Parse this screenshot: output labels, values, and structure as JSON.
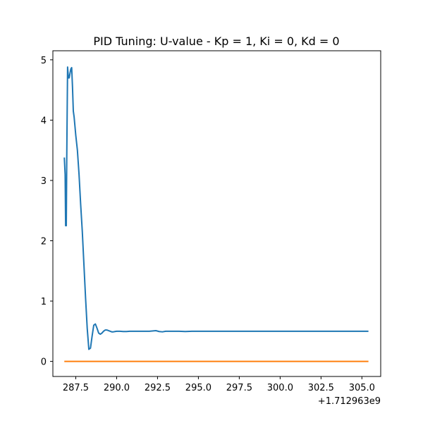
{
  "chart_data": {
    "type": "line",
    "title": "PID Tuning: U-value - Kp = 1, Ki = 0, Kd = 0",
    "xlabel": "",
    "ylabel": "",
    "x_offset_label": "+1.712963e9",
    "xlim": [
      286.1,
      306.15
    ],
    "ylim": [
      -0.25,
      5.15
    ],
    "x_ticks": [
      287.5,
      290.0,
      292.5,
      295.0,
      297.5,
      300.0,
      302.5,
      305.0
    ],
    "x_tick_labels": [
      "287.5",
      "290.0",
      "292.5",
      "295.0",
      "297.5",
      "300.0",
      "302.5",
      "305.0"
    ],
    "y_ticks": [
      0,
      1,
      2,
      3,
      4,
      5
    ],
    "y_tick_labels": [
      "0",
      "1",
      "2",
      "3",
      "4",
      "5"
    ],
    "grid": false,
    "legend": "none",
    "series": [
      {
        "color": "#1f77b4",
        "x": [
          286.8,
          286.85,
          286.88,
          286.92,
          286.95,
          286.98,
          287.0,
          287.05,
          287.1,
          287.15,
          287.2,
          287.25,
          287.3,
          287.35,
          287.4,
          287.45,
          287.5,
          287.6,
          287.7,
          287.8,
          287.9,
          288.0,
          288.1,
          288.2,
          288.3,
          288.4,
          288.5,
          288.6,
          288.7,
          288.8,
          288.9,
          289.0,
          289.1,
          289.2,
          289.3,
          289.4,
          289.5,
          289.6,
          289.7,
          289.8,
          289.9,
          290.0,
          290.2,
          290.4,
          290.6,
          290.8,
          291.0,
          291.5,
          292.0,
          292.4,
          292.6,
          292.8,
          293.0,
          293.4,
          293.8,
          294.2,
          294.6,
          295.0,
          296.0,
          297.0,
          298.0,
          299.0,
          300.0,
          301.0,
          302.0,
          303.0,
          304.0,
          305.0,
          305.4
        ],
        "y": [
          3.38,
          3.1,
          2.25,
          2.25,
          3.4,
          4.3,
          4.88,
          4.7,
          4.7,
          4.78,
          4.85,
          4.87,
          4.55,
          4.15,
          4.05,
          3.9,
          3.75,
          3.5,
          3.1,
          2.6,
          2.15,
          1.6,
          1.05,
          0.55,
          0.2,
          0.22,
          0.42,
          0.6,
          0.62,
          0.55,
          0.47,
          0.45,
          0.47,
          0.5,
          0.52,
          0.52,
          0.51,
          0.5,
          0.49,
          0.49,
          0.495,
          0.5,
          0.5,
          0.495,
          0.495,
          0.5,
          0.5,
          0.5,
          0.5,
          0.51,
          0.495,
          0.49,
          0.5,
          0.5,
          0.5,
          0.495,
          0.5,
          0.5,
          0.5,
          0.5,
          0.5,
          0.5,
          0.5,
          0.5,
          0.5,
          0.5,
          0.5,
          0.5,
          0.5
        ]
      },
      {
        "color": "#ff7f0e",
        "x": [
          286.8,
          305.4
        ],
        "y": [
          0,
          0
        ]
      }
    ]
  }
}
